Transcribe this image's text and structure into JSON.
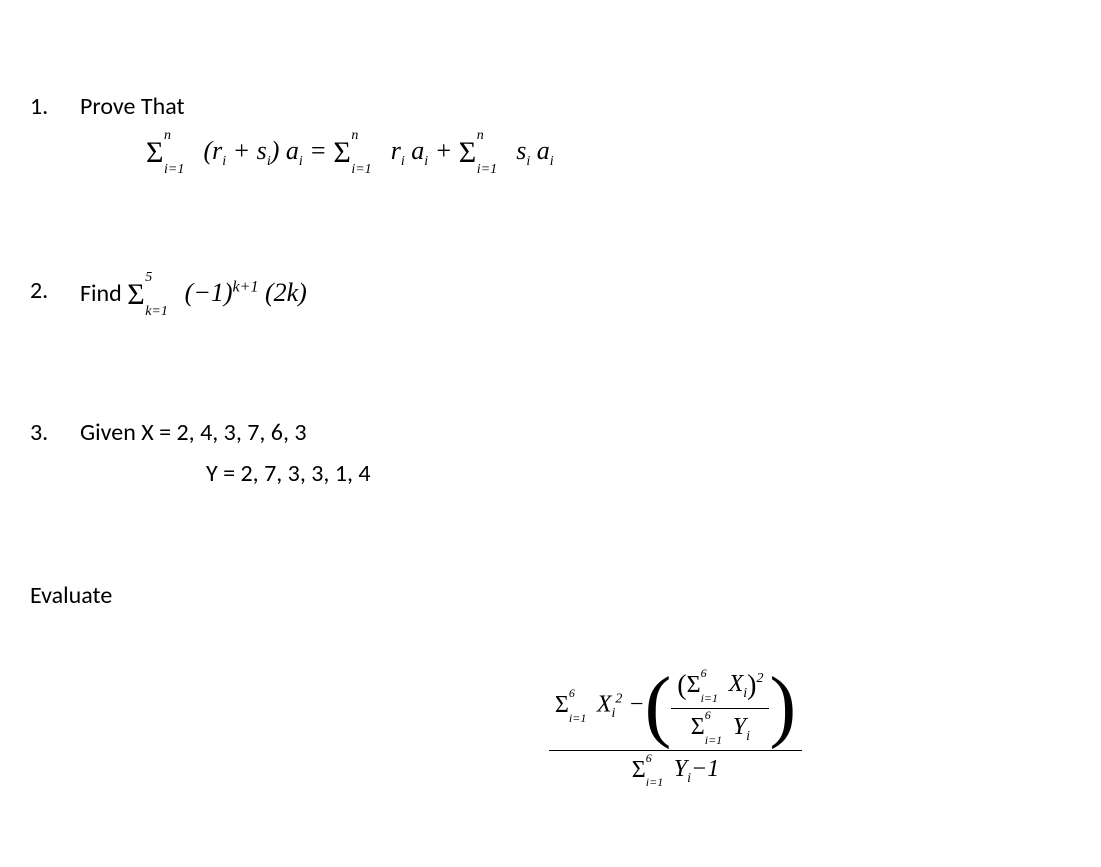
{
  "problem1": {
    "number": "1.",
    "label": "Prove That",
    "lhs_upper": "n",
    "lhs_lower": "i=1",
    "lhs_body": "(r",
    "lhs_body2": " +  s",
    "lhs_body3": ") a",
    "eq": " = ",
    "rhs1_upper": "n",
    "rhs1_lower": "i=1",
    "rhs1_body1": "r",
    "rhs1_body2": " a",
    "plus": " + ",
    "rhs2_upper": "n",
    "rhs2_lower": "i=1",
    "rhs2_body1": "s",
    "rhs2_body2": " a",
    "sub_i": "i"
  },
  "problem2": {
    "number": "2.",
    "label": "Find",
    "upper": "5",
    "lower": "k=1",
    "body_pre": "(−1)",
    "body_exp": "k+1",
    "body_post": " (2k)"
  },
  "problem3": {
    "number": "3.",
    "given_x": "Given X = 2, 4, 3, 7, 6, 3",
    "given_y": "Y = 2, 7, 3, 3, 1, 4",
    "eval": "Evaluate",
    "num_s1_upper": "6",
    "num_s1_lower": "i=1",
    "num_s1_body": "X",
    "sub_i": "i",
    "sq": "2",
    "minus": "−",
    "inner_s_upper": "6",
    "inner_s_lower": "i=1",
    "inner_body": "X",
    "inner_den_s_upper": "6",
    "inner_den_s_lower": "i=1",
    "inner_den_body": "Y",
    "den_s_upper": "6",
    "den_s_lower": "i=1",
    "den_body": "Y",
    "den_suffix": "−1"
  }
}
